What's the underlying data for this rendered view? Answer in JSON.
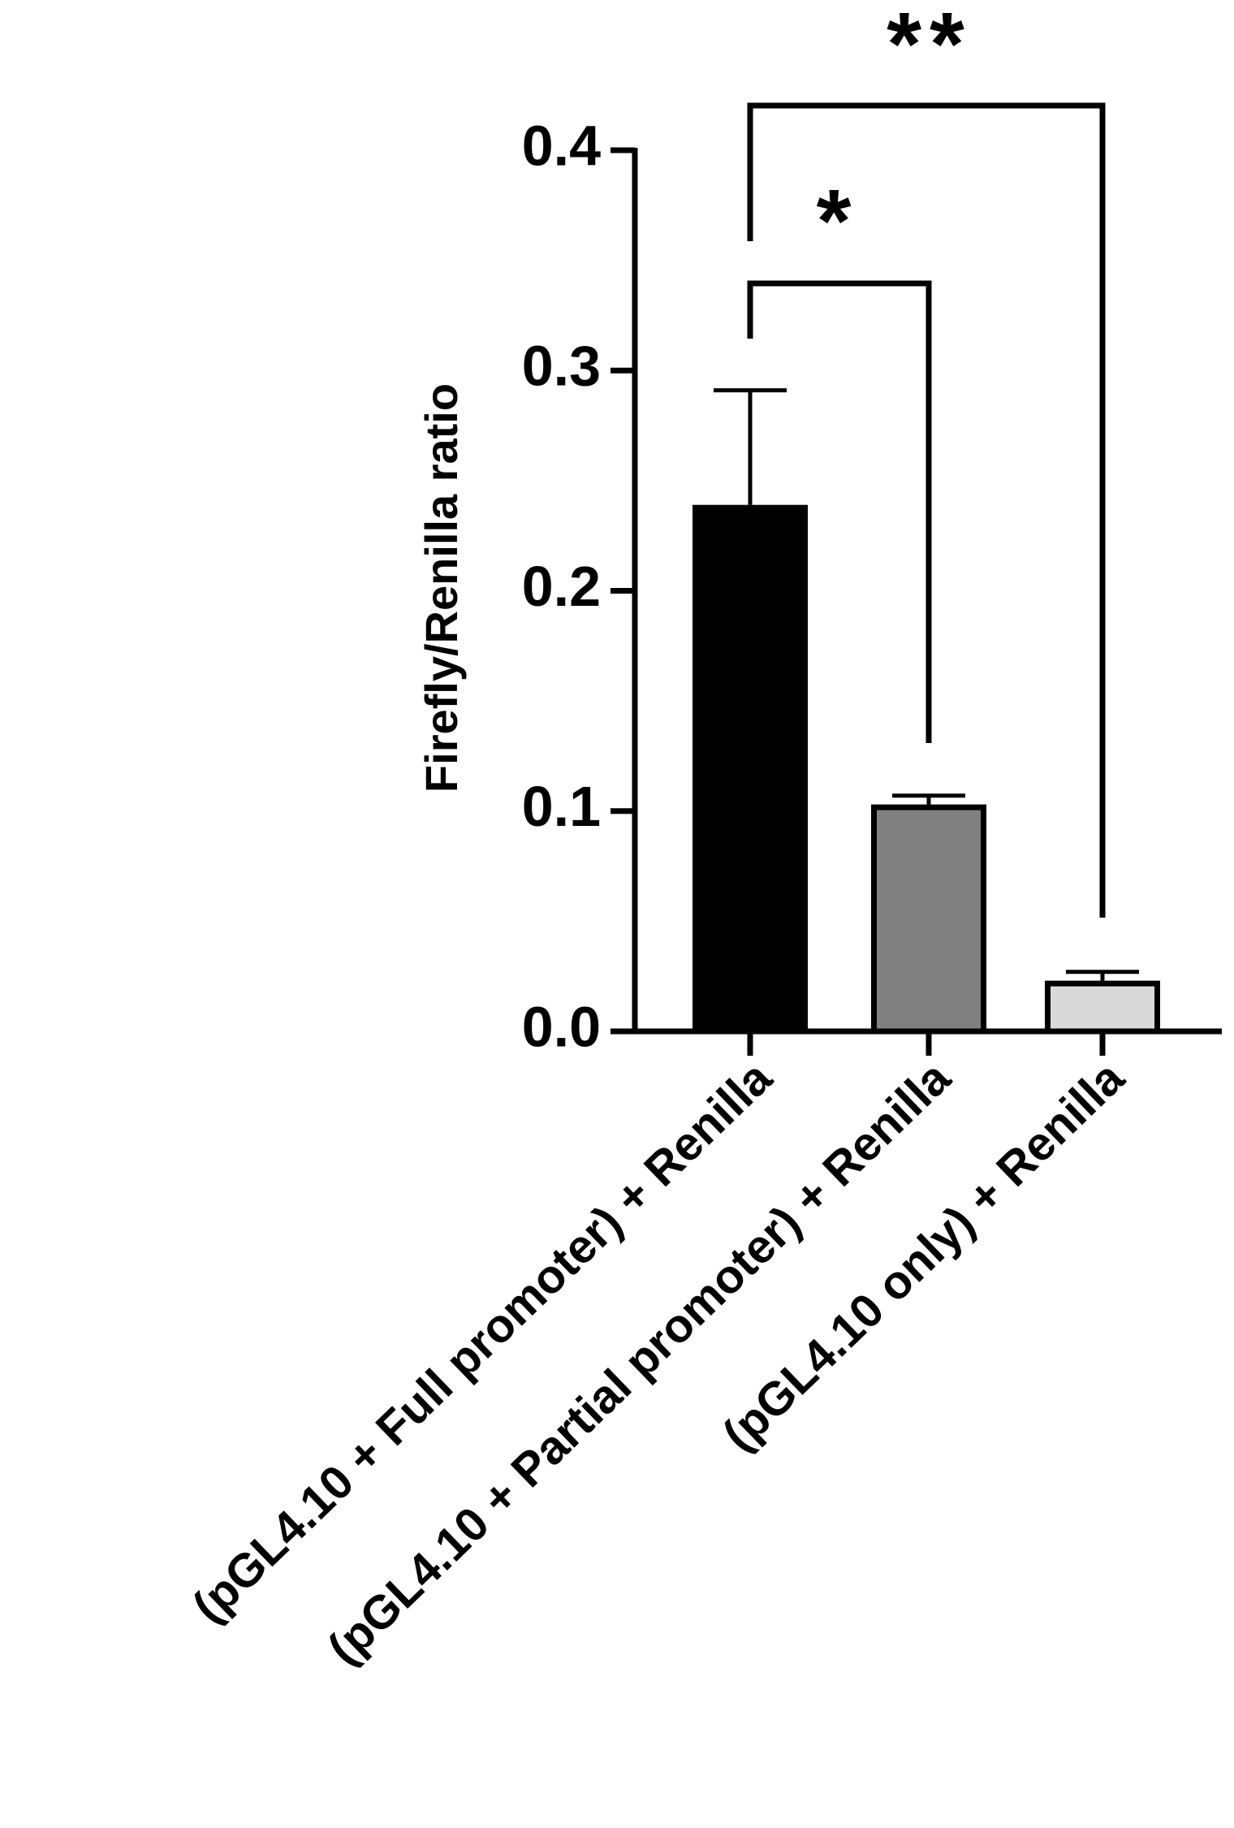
{
  "chart_data": {
    "type": "bar",
    "ylabel": "Firefly/Renilla ratio",
    "categories": [
      "(pGL4.10 + Full promoter) + Renilla",
      "(pGL4.10 + Partial promoter) + Renilla",
      "(pGL4.10 only) + Renilla"
    ],
    "values": [
      0.239,
      0.103,
      0.023
    ],
    "errors": [
      0.052,
      0.004,
      0.004
    ],
    "colors": [
      "#000000",
      "#808080",
      "#d9d9d9"
    ],
    "ylim": [
      0,
      0.4
    ],
    "yticks": [
      {
        "value": 0,
        "label": "0.0"
      },
      0.1,
      0.2,
      0.3,
      0.4
    ],
    "annotations": [
      {
        "text": "*",
        "from": 0,
        "to": 1
      },
      {
        "text": "**",
        "from": 0,
        "to": 2
      }
    ]
  }
}
